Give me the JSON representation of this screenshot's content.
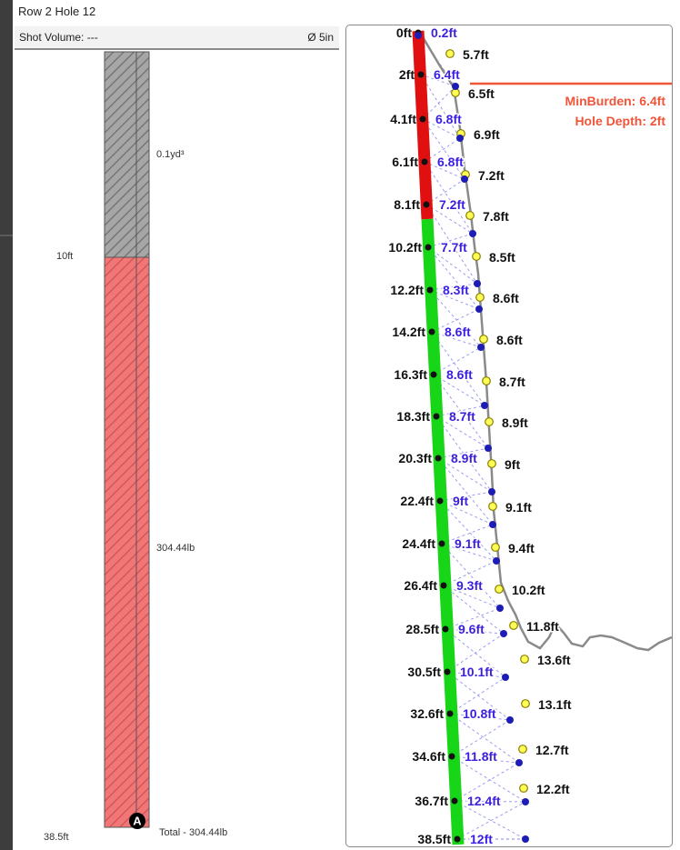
{
  "header": {
    "title": "Row 2 Hole 12"
  },
  "shot": {
    "volume_label": "Shot Volume: ---",
    "diameter_label": "Ø 5in"
  },
  "column": {
    "top_volume_label": "0.1yd³",
    "mid_depth_label": "10ft",
    "charge_weight_label": "304.44lb",
    "bottom_depth_label": "38.5ft",
    "total_label": "Total - 304.44lb",
    "primer_marker": "A",
    "colors": {
      "stemming": "#a6a6a6",
      "explosive": "#f37676"
    }
  },
  "profile": {
    "depth_labels": [
      "0ft",
      "2ft",
      "4.1ft",
      "6.1ft",
      "8.1ft",
      "10.2ft",
      "12.2ft",
      "14.2ft",
      "16.3ft",
      "18.3ft",
      "20.3ft",
      "22.4ft",
      "24.4ft",
      "26.4ft",
      "28.5ft",
      "30.5ft",
      "32.6ft",
      "34.6ft",
      "36.7ft",
      "38.5ft"
    ],
    "burden_labels": [
      "0.2ft",
      "6.4ft",
      "6.8ft",
      "6.8ft",
      "7.2ft",
      "7.7ft",
      "8.3ft",
      "8.6ft",
      "8.6ft",
      "8.7ft",
      "8.9ft",
      "9ft",
      "9.1ft",
      "9.3ft",
      "9.6ft",
      "10.1ft",
      "10.8ft",
      "11.8ft",
      "12.4ft",
      "12ft"
    ],
    "face_labels": [
      "5.7ft",
      "6.5ft",
      "6.9ft",
      "7.2ft",
      "7.8ft",
      "8.5ft",
      "8.6ft",
      "8.6ft",
      "8.7ft",
      "8.9ft",
      "9ft",
      "9.1ft",
      "9.4ft",
      "10.2ft",
      "11.8ft",
      "13.6ft",
      "13.1ft",
      "12.7ft",
      "12.2ft"
    ],
    "min_burden_label": "MinBurden: 6.4ft",
    "hole_depth_label": "Hole Depth: 2ft",
    "colors": {
      "hole_danger": "#e01010",
      "hole_ok": "#17d617",
      "burden_text": "#3b1fe0",
      "alert": "#f0553a",
      "face": "#8a8a8a"
    }
  }
}
